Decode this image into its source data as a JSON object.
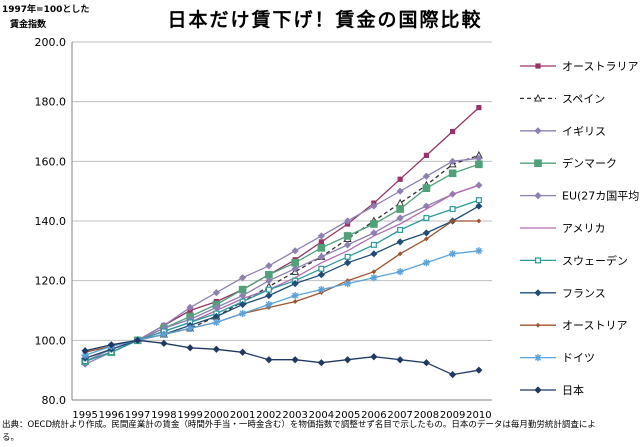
{
  "chart_data": {
    "type": "line",
    "title": "日本だけ賃下げ！賃金の国際比較",
    "y_unit_lines": [
      "1997年=100とした",
      "賃金指数"
    ],
    "source_lines": [
      "出典：OECD統計より作成。民間産業計の賃金（時間外手当・一時金含む）を物価指数で調整せず名目で示したもの。日本のデータは毎月勤労統計調査によ",
      "る。"
    ],
    "ylim": [
      80,
      200
    ],
    "yticks": [
      "80.0",
      "100.0",
      "120.0",
      "140.0",
      "160.0",
      "180.0",
      "200.0"
    ],
    "ytick_values": [
      80,
      100,
      120,
      140,
      160,
      180,
      200
    ],
    "grid": true,
    "legend_position": "right",
    "x": [
      "1995",
      "1996",
      "1997",
      "1998",
      "1999",
      "2000",
      "2001",
      "2002",
      "2003",
      "2004",
      "2005",
      "2006",
      "2007",
      "2008",
      "2009",
      "2010"
    ],
    "series": [
      {
        "name": "オーストラリア",
        "color": "#9b3167",
        "marker": "square",
        "values": [
          94,
          97,
          100,
          105,
          110,
          113,
          117,
          122,
          127,
          133,
          139,
          146,
          154,
          162,
          170,
          178
        ]
      },
      {
        "name": "スペイン",
        "color": "#333333",
        "marker": "triangle",
        "dashed": true,
        "values": [
          93,
          96,
          100,
          102,
          104,
          108,
          113,
          118,
          123,
          128,
          134,
          140,
          146,
          152,
          159,
          162
        ]
      },
      {
        "name": "イギリス",
        "color": "#8e7fb4",
        "marker": "diamond",
        "values": [
          92,
          96,
          100,
          105,
          111,
          116,
          121,
          125,
          130,
          135,
          140,
          145,
          150,
          155,
          160,
          161
        ]
      },
      {
        "name": "デンマーク",
        "color": "#4ea277",
        "marker": "bigsquare",
        "values": [
          93,
          96,
          100,
          104,
          108,
          112,
          117,
          122,
          126,
          131,
          135,
          139,
          144,
          151,
          156,
          159
        ]
      },
      {
        "name": "EU(27カ国平均)",
        "color": "#8c7fb4",
        "marker": "diamond",
        "values": [
          93,
          97,
          100,
          104,
          107,
          111,
          115,
          120,
          124,
          128,
          132,
          136,
          141,
          145,
          149,
          152
        ]
      },
      {
        "name": "アメリカ",
        "color": "#b06cb0",
        "marker": "line",
        "values": [
          93,
          96,
          100,
          103,
          106,
          110,
          114,
          117,
          121,
          126,
          130,
          135,
          139,
          144,
          149,
          152
        ]
      },
      {
        "name": "スウェーデン",
        "color": "#2a9b9c",
        "marker": "opensquare",
        "values": [
          93,
          96,
          100,
          103,
          106,
          109,
          113,
          117,
          120,
          124,
          128,
          132,
          137,
          141,
          144,
          147
        ]
      },
      {
        "name": "フランス",
        "color": "#1f4e79",
        "marker": "diamond",
        "values": [
          94,
          97,
          100,
          102,
          105,
          108,
          112,
          115,
          119,
          122,
          126,
          129,
          133,
          136,
          140,
          145
        ]
      },
      {
        "name": "オーストリア",
        "color": "#a0522d",
        "marker": "smalldiamond",
        "values": [
          96,
          98,
          100,
          102,
          104,
          106,
          109,
          111,
          113,
          116,
          120,
          123,
          129,
          134,
          140,
          140
        ]
      },
      {
        "name": "ドイツ",
        "color": "#5ba3dc",
        "marker": "asterisk",
        "values": [
          95,
          98,
          100,
          102,
          104,
          106,
          109,
          112,
          115,
          117,
          119,
          121,
          123,
          126,
          129,
          130
        ]
      },
      {
        "name": "日本",
        "color": "#1f3864",
        "marker": "diamond",
        "values": [
          96.5,
          98.5,
          100,
          99,
          97.5,
          97,
          96,
          93.5,
          93.5,
          92.5,
          93.5,
          94.5,
          93.5,
          92.5,
          88.5,
          90
        ]
      }
    ]
  }
}
